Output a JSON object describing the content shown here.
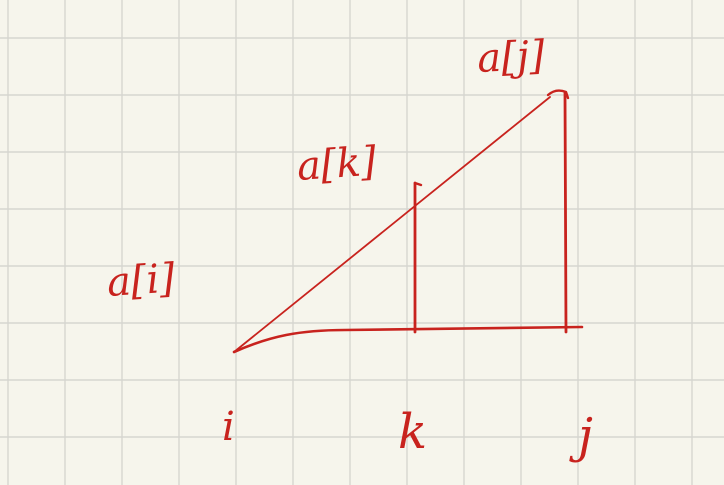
{
  "labels": {
    "a_i": "a[i]",
    "a_k": "a[k]",
    "a_j": "a[j]",
    "x_i": "i",
    "x_k": "k",
    "x_j": "j"
  },
  "ink_color": "#c8231e",
  "paper_color": "#f6f5ec",
  "grid_color": "#d6d6d0"
}
